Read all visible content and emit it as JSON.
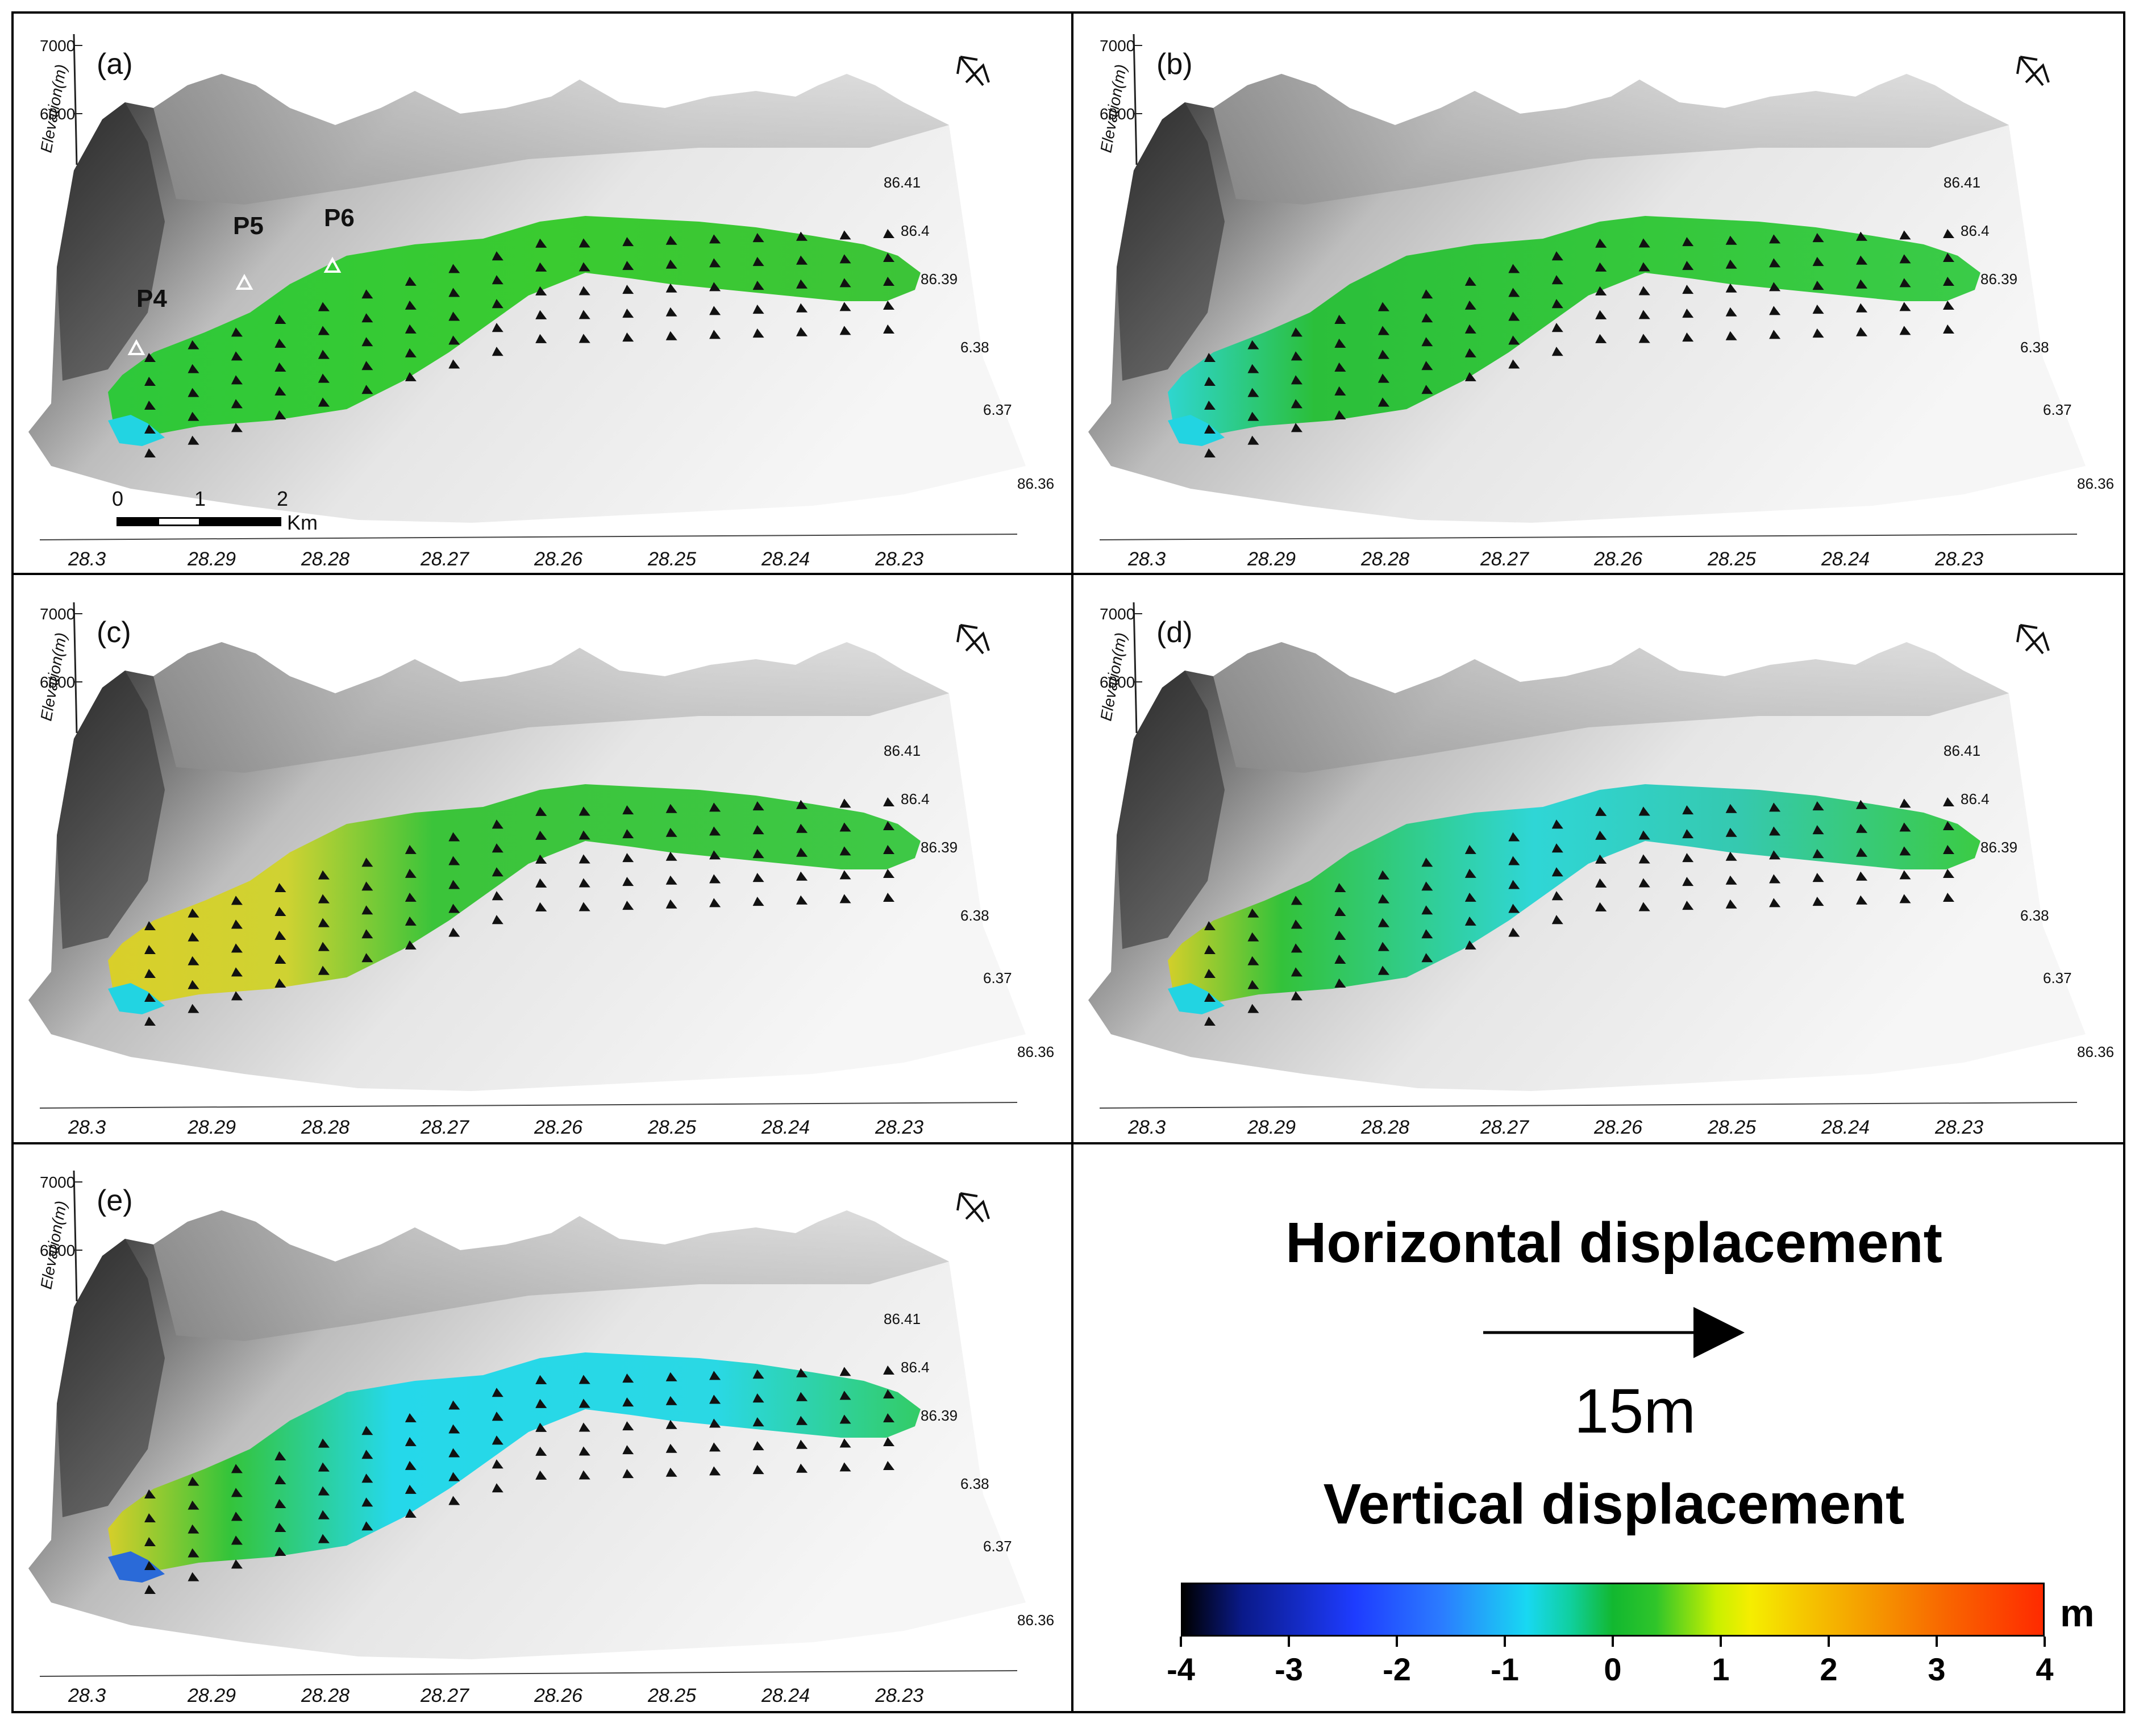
{
  "panels": [
    {
      "label": "(a)",
      "points": [
        "P4",
        "P5",
        "P6"
      ],
      "show_scale_bar": true,
      "tint": "green"
    },
    {
      "label": "(b)",
      "points": [],
      "show_scale_bar": false,
      "tint": "green-cyan"
    },
    {
      "label": "(c)",
      "points": [],
      "show_scale_bar": false,
      "tint": "yellow-green"
    },
    {
      "label": "(d)",
      "points": [],
      "show_scale_bar": false,
      "tint": "cyan"
    },
    {
      "label": "(e)",
      "points": [],
      "show_scale_bar": false,
      "tint": "cyan-blue"
    }
  ],
  "axes": {
    "elevation_label": "Elevation(m)",
    "elevation_ticks": [
      "7000",
      "6000"
    ],
    "lat_ticks": [
      "28.3",
      "28.29",
      "28.28",
      "28.27",
      "28.26",
      "28.25",
      "28.24",
      "28.23"
    ],
    "lon_ticks": [
      "86.41",
      "86.4",
      "86.39",
      "6.38",
      "6.37",
      "86.36"
    ]
  },
  "scale_bar": {
    "ticks": [
      "0",
      "1",
      "2"
    ],
    "unit": "Km"
  },
  "legend": {
    "horizontal_title": "Horizontal displacement",
    "arrow_scale_label": "15m",
    "vertical_title": "Vertical displacement",
    "colorbar_ticks": [
      "-4",
      "-3",
      "-2",
      "-1",
      "0",
      "1",
      "2",
      "3",
      "4"
    ],
    "colorbar_unit": "m",
    "colorbar_min": -4,
    "colorbar_max": 4
  },
  "colors": {
    "glacier_green": "#33cc33",
    "cyan": "#22ddee",
    "yellow": "#d8d020",
    "blue": "#2a6ad8",
    "terrain_dark": "#2a2a2a",
    "terrain_light": "#f2f2f2"
  }
}
